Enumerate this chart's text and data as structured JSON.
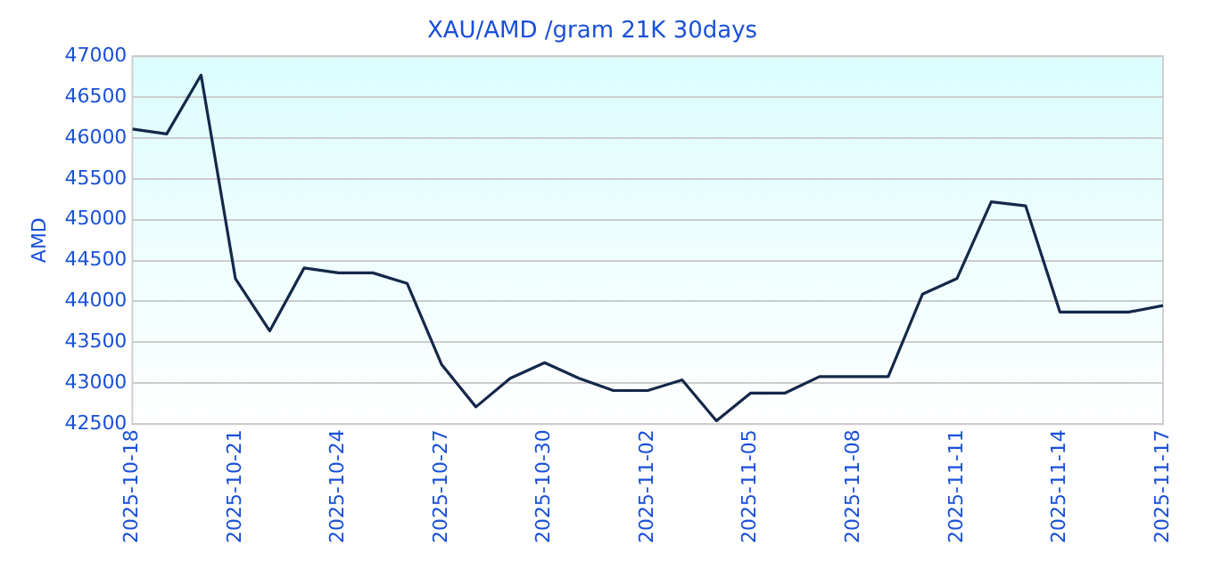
{
  "chart_data": {
    "type": "line",
    "title": "XAU/AMD /gram 21K 30days",
    "ylabel": "AMD",
    "x": [
      "2025-10-18",
      "2025-10-19",
      "2025-10-20",
      "2025-10-21",
      "2025-10-22",
      "2025-10-23",
      "2025-10-24",
      "2025-10-25",
      "2025-10-26",
      "2025-10-27",
      "2025-10-28",
      "2025-10-29",
      "2025-10-30",
      "2025-10-31",
      "2025-11-01",
      "2025-11-02",
      "2025-11-03",
      "2025-11-04",
      "2025-11-05",
      "2025-11-06",
      "2025-11-07",
      "2025-11-08",
      "2025-11-09",
      "2025-11-10",
      "2025-11-11",
      "2025-11-12",
      "2025-11-13",
      "2025-11-14",
      "2025-11-15",
      "2025-11-16",
      "2025-11-17"
    ],
    "series": [
      {
        "color": "#14284a",
        "values": [
          46110,
          46050,
          46770,
          44280,
          43640,
          44410,
          44350,
          44350,
          44220,
          43230,
          42710,
          43060,
          43250,
          43060,
          42910,
          42910,
          43040,
          42540,
          42880,
          42880,
          43080,
          43080,
          43080,
          44090,
          44280,
          45220,
          45170,
          43870,
          43870,
          43870,
          43950
        ]
      }
    ],
    "xlim": [
      "2025-10-18",
      "2025-11-17"
    ],
    "xticks": [
      "2025-10-18",
      "2025-10-21",
      "2025-10-24",
      "2025-10-27",
      "2025-10-30",
      "2025-11-02",
      "2025-11-05",
      "2025-11-08",
      "2025-11-11",
      "2025-11-14",
      "2025-11-17"
    ],
    "ylim": [
      42500,
      47000
    ],
    "yticks": [
      42500,
      43000,
      43500,
      44000,
      44500,
      45000,
      45500,
      46000,
      46500,
      47000
    ],
    "grid": "y",
    "legend": false,
    "marker": "none",
    "line_style": "solid"
  }
}
